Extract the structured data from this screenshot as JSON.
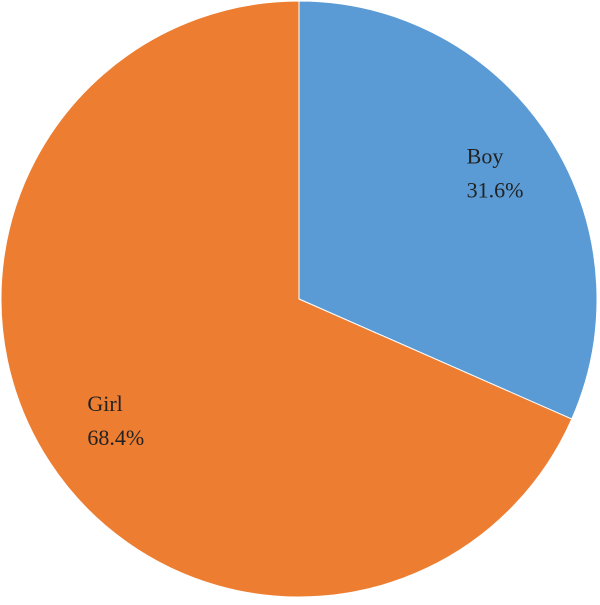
{
  "chart_data": {
    "type": "pie",
    "categories": [
      "Boy",
      "Girl"
    ],
    "values": [
      31.6,
      68.4
    ],
    "value_labels": [
      "31.6%",
      "68.4%"
    ],
    "colors": [
      "#5b9bd5",
      "#ed7d31"
    ]
  }
}
